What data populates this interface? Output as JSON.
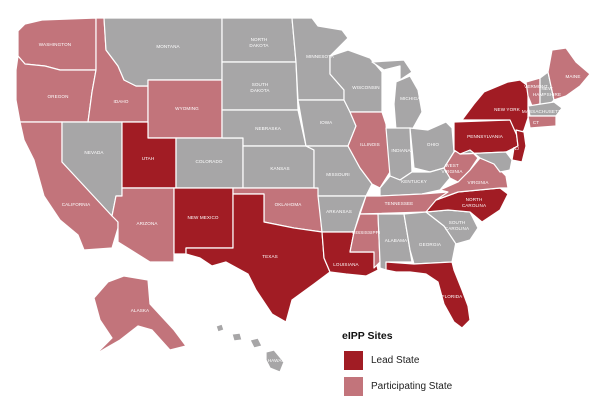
{
  "colors": {
    "lead": "#a11c24",
    "participating": "#c2747b",
    "other": "#a7a6a7"
  },
  "legend": {
    "title": "eIPP Sites",
    "items": [
      {
        "label": "Lead State",
        "color": "#a11c24"
      },
      {
        "label": "Participating State",
        "color": "#c2747b"
      }
    ]
  },
  "states": {
    "lead": [
      "UTAH",
      "NEW MEXICO",
      "TEXAS",
      "LOUISIANA",
      "FLORIDA",
      "NORTH CAROLINA",
      "PENNSYLVANIA",
      "NEW YORK",
      "NJ"
    ],
    "participating": [
      "WASHINGTON",
      "OREGON",
      "CALIFORNIA",
      "IDAHO",
      "WYOMING",
      "ARIZONA",
      "OKLAHOMA",
      "ILLINOIS",
      "MISSISSIPPI",
      "TENNESSEE",
      "WEST VIRGINIA",
      "VIRGINIA",
      "VERMONT",
      "MAINE",
      "ALASKA",
      "CT"
    ],
    "labels": {
      "WA": "WASHINGTON",
      "OR": "OREGON",
      "CA": "CALIFORNIA",
      "ID": "IDAHO",
      "NV": "NEVADA",
      "MT": "MONTANA",
      "WY": "WYOMING",
      "UT": "UTAH",
      "CO": "COLORADO",
      "AZ": "ARIZONA",
      "NM": "NEW MEXICO",
      "ND1": "NORTH",
      "ND2": "DAKOTA",
      "SD1": "SOUTH",
      "SD2": "DAKOTA",
      "NE": "NEBRASKA",
      "KS": "KANSAS",
      "OK": "OKLAHOMA",
      "TX": "TEXAS",
      "MN": "MINNESOTA",
      "IA": "IOWA",
      "MO": "MISSOURI",
      "AR": "ARKANSAS",
      "LA": "LOUISIANA",
      "WI": "WISCONSIN",
      "IL": "ILLINOIS",
      "MI": "MICHIGAN",
      "IN": "INDIANA",
      "OH": "OHIO",
      "KY": "KENTUCKY",
      "TN": "TENNESSEE",
      "MS": "MISSISSIPPI",
      "AL": "ALABAMA",
      "GA": "GEORGIA",
      "FL": "FLORIDA",
      "SC1": "SOUTH",
      "SC2": "CAROLINA",
      "NC1": "NORTH",
      "NC2": "CAROLINA",
      "VA": "VIRGINIA",
      "WV1": "WEST",
      "WV2": "VIRGINIA",
      "PA": "PENNSYLVANIA",
      "NY": "NEW YORK",
      "VT": "VERMONT",
      "ME": "MAINE",
      "NH1": "NEW",
      "NH2": "HAMPSHIRE",
      "MA": "MASSACHUSETTS",
      "CT": "CT",
      "NJ": "NJ",
      "AK": "ALASKA",
      "HI": "HAWAII"
    }
  }
}
